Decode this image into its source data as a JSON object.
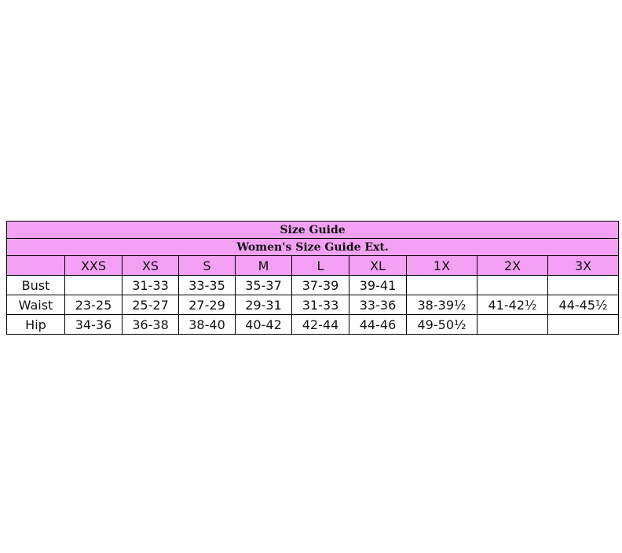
{
  "title": "Size Guide",
  "subtitle": "Women's Size Guide Ext.",
  "accent_color": "#f4a0f4",
  "columns": [
    "",
    "XXS",
    "XS",
    "S",
    "M",
    "L",
    "XL",
    "1X",
    "2X",
    "3X"
  ],
  "rows": [
    {
      "label": "Bust",
      "values": [
        "",
        "31-33",
        "33-35",
        "35-37",
        "37-39",
        "39-41",
        "",
        "",
        ""
      ]
    },
    {
      "label": "Waist",
      "values": [
        "23-25",
        "25-27",
        "27-29",
        "29-31",
        "31-33",
        "33-36",
        "38-39½",
        "41-42½",
        "44-45½"
      ]
    },
    {
      "label": "Hip",
      "values": [
        "34-36",
        "36-38",
        "38-40",
        "40-42",
        "42-44",
        "44-46",
        "49-50½",
        "",
        ""
      ]
    }
  ]
}
